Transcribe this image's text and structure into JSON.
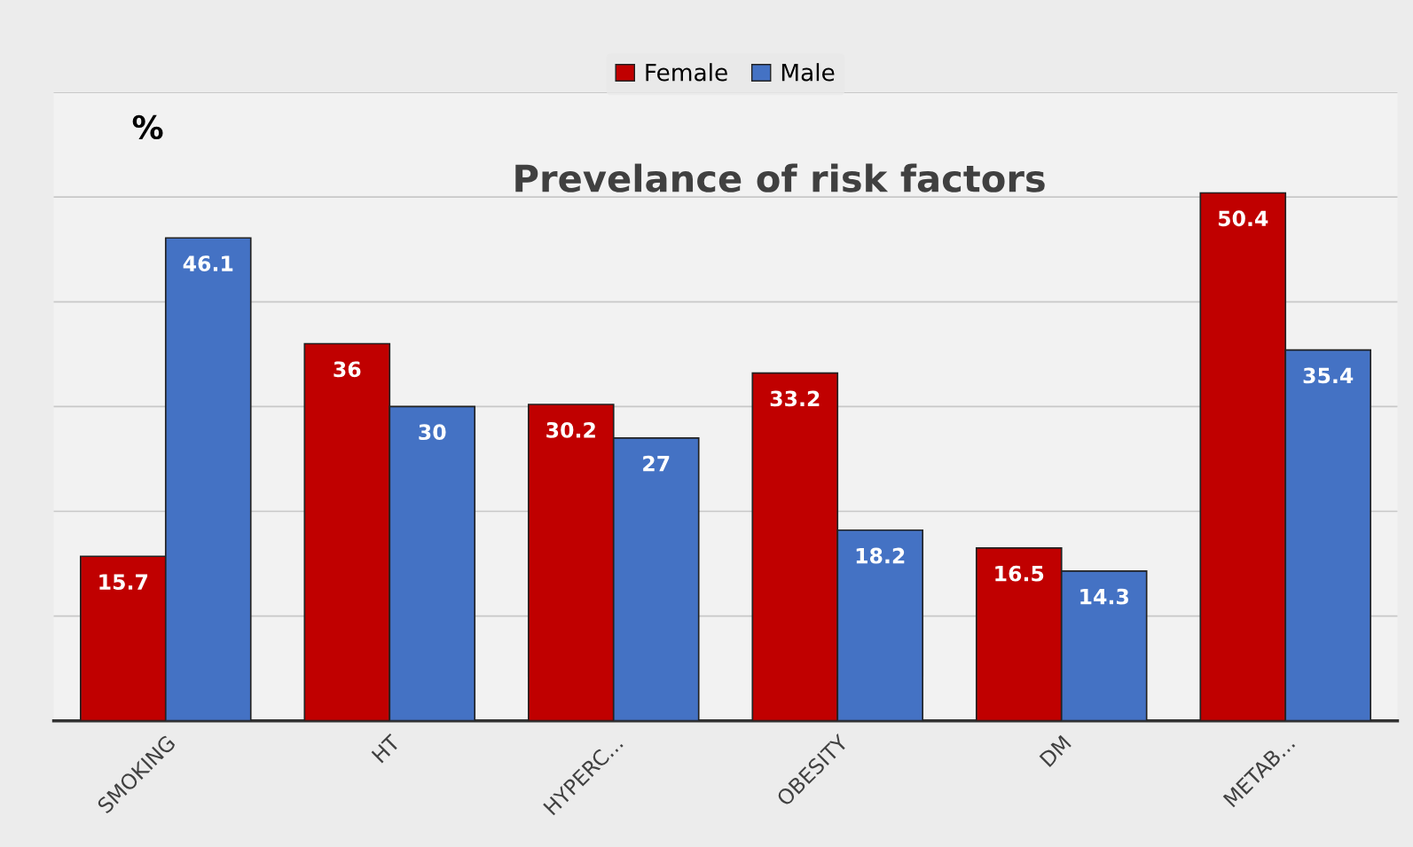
{
  "chart_data": {
    "type": "bar",
    "title": "Prevelance of risk factors",
    "categories": [
      "SMOKING",
      "HT",
      "HYPERC...",
      "OBESITY",
      "DM",
      "METAB..."
    ],
    "series": [
      {
        "name": "Female",
        "color": "#c00000",
        "values": [
          15.7,
          36,
          30.2,
          33.2,
          16.5,
          50.4
        ]
      },
      {
        "name": "Male",
        "color": "#4472c4",
        "values": [
          46.1,
          30,
          27,
          18.2,
          14.3,
          35.4
        ]
      }
    ],
    "ylim": [
      0,
      60
    ],
    "yticks": [
      {
        "value": 0,
        "label": null
      },
      {
        "value": 10,
        "label": null
      },
      {
        "value": 20,
        "label": null
      },
      {
        "value": 30,
        "label": null
      },
      {
        "value": 40,
        "label": null
      },
      {
        "value": 50,
        "label": null
      },
      {
        "value": 60,
        "label": null
      }
    ],
    "tick_labels": "x",
    "grid": "y",
    "legend": "top",
    "data_labels": true,
    "annotations": [
      "%"
    ]
  }
}
